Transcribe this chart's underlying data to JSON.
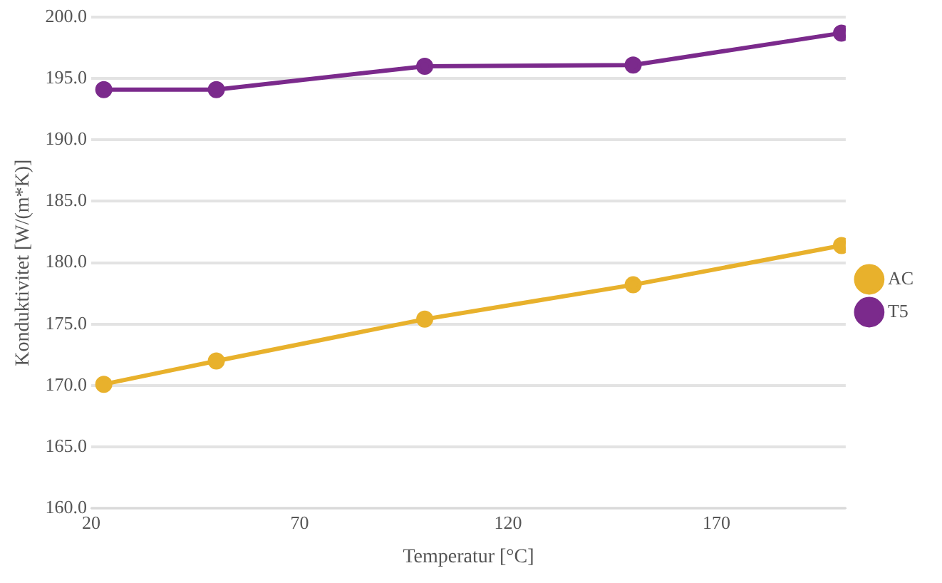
{
  "chart_data": {
    "type": "line",
    "xlabel": "Temperatur [°C]",
    "ylabel": "Konduktivitet [W/(m*K)]",
    "series": [
      {
        "name": "AC",
        "color": "#e8b12c",
        "x": [
          23,
          50,
          100,
          150,
          200
        ],
        "values": [
          170.1,
          172.0,
          175.4,
          178.2,
          181.4
        ]
      },
      {
        "name": "T5",
        "color": "#7b2a8c",
        "x": [
          23,
          50,
          100,
          150,
          200
        ],
        "values": [
          194.1,
          194.1,
          196.0,
          196.1,
          198.7
        ]
      }
    ],
    "xlim": [
      20,
      201
    ],
    "xticks": [
      20,
      70,
      120,
      170
    ],
    "ylim": [
      160,
      200
    ],
    "yticks": [
      {
        "value": 160,
        "label": "160.0"
      },
      {
        "value": 165,
        "label": "165.0"
      },
      {
        "value": 170,
        "label": "170.0"
      },
      {
        "value": 175,
        "label": "175.0"
      },
      {
        "value": 180,
        "label": "180.0"
      },
      {
        "value": 185,
        "label": "185.0"
      },
      {
        "value": 190,
        "label": "190.0"
      },
      {
        "value": 195,
        "label": "195.0"
      },
      {
        "value": 200,
        "label": "200.0"
      }
    ],
    "grid": "y",
    "legend": "right",
    "marker": "circle",
    "line_style": "solid"
  }
}
